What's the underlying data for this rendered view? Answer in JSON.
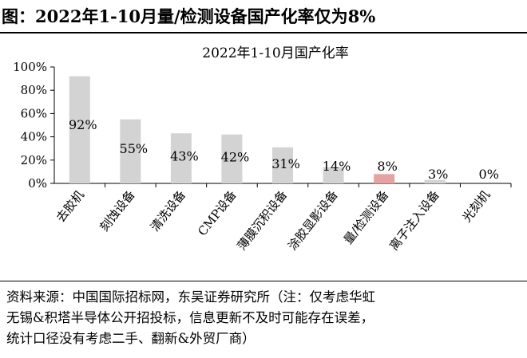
{
  "header": {
    "figure_title": "图：2022年1-10月量/检测设备国产化率仅为8%"
  },
  "chart_data": {
    "type": "bar",
    "title": "2022年1-10月国产化率",
    "categories": [
      "去胶机",
      "刻蚀设备",
      "清洗设备",
      "CMP设备",
      "薄膜沉积设备",
      "涂胶显影设备",
      "量/检测设备",
      "离子注入设备",
      "光刻机"
    ],
    "values": [
      92,
      55,
      43,
      42,
      31,
      14,
      8,
      3,
      0
    ],
    "value_labels": [
      "92%",
      "55%",
      "43%",
      "42%",
      "31%",
      "14%",
      "8%",
      "3%",
      "0%"
    ],
    "ylim": [
      0,
      100
    ],
    "yticks": [
      "0%",
      "20%",
      "40%",
      "60%",
      "80%",
      "100%"
    ],
    "xlabel": "",
    "ylabel": "",
    "grid": false,
    "colors": {
      "bar": "#d3d3d3",
      "highlight": "#e6a3a3"
    },
    "highlight_index": 6
  },
  "footer": {
    "source_lines": [
      "资料来源：中国国际招标网，东吴证券研究所（注：仅考虑华虹",
      "无锡&积塔半导体公开招投标，信息更新不及时可能存在误差，",
      "统计口径没有考虑二手、翻新&外贸厂商）"
    ]
  }
}
